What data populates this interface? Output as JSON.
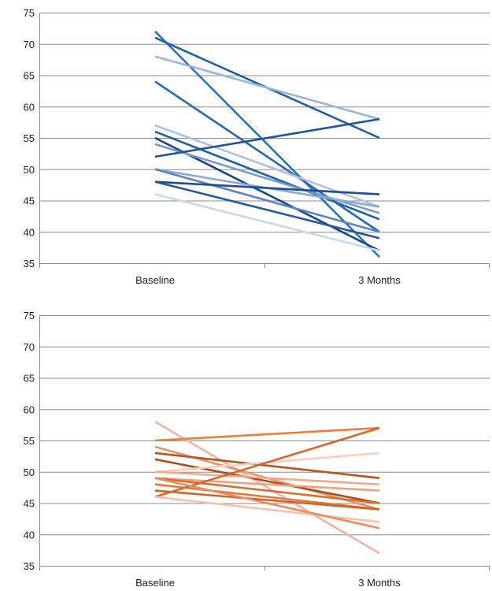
{
  "chart_data": [
    {
      "type": "line",
      "categories": [
        "Baseline",
        "3 Months"
      ],
      "ylim": [
        35,
        75
      ],
      "yticks": [
        35,
        40,
        45,
        50,
        55,
        60,
        65,
        70,
        75
      ],
      "grid": true,
      "legend": "none",
      "series": [
        {
          "values": [
            72,
            36
          ],
          "color": "#2E75B6"
        },
        {
          "values": [
            71,
            55
          ],
          "color": "#1F5FA6"
        },
        {
          "values": [
            68,
            58
          ],
          "color": "#9DB3D9"
        },
        {
          "values": [
            64,
            40
          ],
          "color": "#2569B0"
        },
        {
          "values": [
            57,
            44
          ],
          "color": "#AFC2E3"
        },
        {
          "values": [
            56,
            42
          ],
          "color": "#1E63AA"
        },
        {
          "values": [
            55,
            37
          ],
          "color": "#174A84"
        },
        {
          "values": [
            54,
            43
          ],
          "color": "#7C99CC"
        },
        {
          "values": [
            52,
            58
          ],
          "color": "#1B5598"
        },
        {
          "values": [
            50,
            44
          ],
          "color": "#8FA8D6"
        },
        {
          "values": [
            50,
            40
          ],
          "color": "#5E82C2"
        },
        {
          "values": [
            48,
            46
          ],
          "color": "#1C4F8D"
        },
        {
          "values": [
            48,
            39
          ],
          "color": "#23599E"
        },
        {
          "values": [
            46,
            37
          ],
          "color": "#CDD7EB"
        }
      ]
    },
    {
      "type": "line",
      "categories": [
        "Baseline",
        "3 Months"
      ],
      "ylim": [
        35,
        75
      ],
      "yticks": [
        35,
        40,
        45,
        50,
        55,
        60,
        65,
        70,
        75
      ],
      "grid": true,
      "legend": "none",
      "series": [
        {
          "values": [
            58,
            37
          ],
          "color": "#F4B3A0"
        },
        {
          "values": [
            55,
            57
          ],
          "color": "#E8803E"
        },
        {
          "values": [
            54,
            44
          ],
          "color": "#E69470"
        },
        {
          "values": [
            53,
            49
          ],
          "color": "#B2571F"
        },
        {
          "values": [
            52,
            45
          ],
          "color": "#A94E16"
        },
        {
          "values": [
            50,
            53
          ],
          "color": "#F8CFC2"
        },
        {
          "values": [
            50,
            48
          ],
          "color": "#F2A98D"
        },
        {
          "values": [
            49,
            47
          ],
          "color": "#EFA07E"
        },
        {
          "values": [
            49,
            45
          ],
          "color": "#D96E2B"
        },
        {
          "values": [
            48,
            44
          ],
          "color": "#E07A3A"
        },
        {
          "values": [
            47,
            44
          ],
          "color": "#C9652A"
        },
        {
          "values": [
            46,
            57
          ],
          "color": "#D2692A"
        },
        {
          "values": [
            46,
            42
          ],
          "color": "#F6C2B0"
        },
        {
          "values": [
            49,
            41
          ],
          "color": "#E78F62"
        }
      ]
    }
  ]
}
